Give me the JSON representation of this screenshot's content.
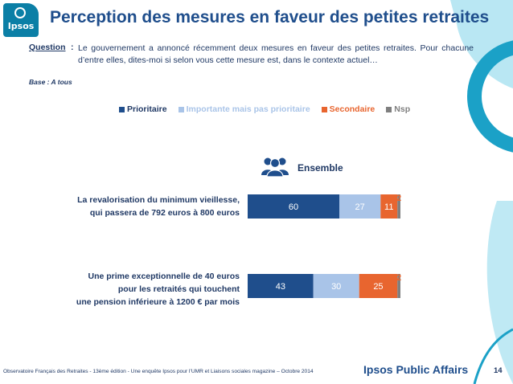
{
  "header": {
    "title": "Perception des mesures en faveur des petites retraites",
    "logo_text": "Ipsos"
  },
  "question": {
    "label": "Question",
    "colon": ":",
    "text": "Le gouvernement a annoncé récemment deux mesures en faveur des petites retraites. Pour chacune d’entre elles, dites-moi si selon vous cette mesure est, dans le contexte actuel…",
    "base": "Base : A tous"
  },
  "ensemble_label": "Ensemble",
  "ensemble_icon": "people-group-icon",
  "colors": {
    "prioritaire": "#1f4e8c",
    "importante": "#a9c4e8",
    "secondaire": "#e8652f",
    "nsp": "#7f7f7f",
    "accent": "#1ba1c7"
  },
  "chart_data": {
    "type": "bar",
    "orientation": "horizontal",
    "stacked": true,
    "percent": true,
    "categories": [
      "La revalorisation du minimum vieillesse, qui passera de 792 euros à 800 euros",
      "Une prime exceptionnelle de 40 euros pour les retraités qui touchent une pension inférieure à 1200 € par mois"
    ],
    "category_lines": [
      [
        "La revalorisation du minimum vieillesse,",
        "qui passera de 792 euros à 800 euros"
      ],
      [
        "Une prime exceptionnelle de 40 euros",
        "pour les retraités qui touchent",
        "une pension inférieure à 1200 € par mois"
      ]
    ],
    "series": [
      {
        "name": "Prioritaire",
        "values": [
          60,
          43
        ],
        "color": "#1f4e8c"
      },
      {
        "name": "Importante mais pas prioritaire",
        "values": [
          27,
          30
        ],
        "color": "#a9c4e8"
      },
      {
        "name": "Secondaire",
        "values": [
          11,
          25
        ],
        "color": "#e8652f"
      },
      {
        "name": "Nsp",
        "values": [
          2,
          2
        ],
        "color": "#7f7f7f"
      }
    ],
    "xlim": [
      0,
      100
    ],
    "legend": "top"
  },
  "footer": {
    "source": "Observatoire Français des Retraites - 13ème édition - Une enquête Ipsos pour  l’UMR et Liaisons sociales magazine – Octobre 2014",
    "brand": "Ipsos Public Affairs",
    "page": "14"
  }
}
